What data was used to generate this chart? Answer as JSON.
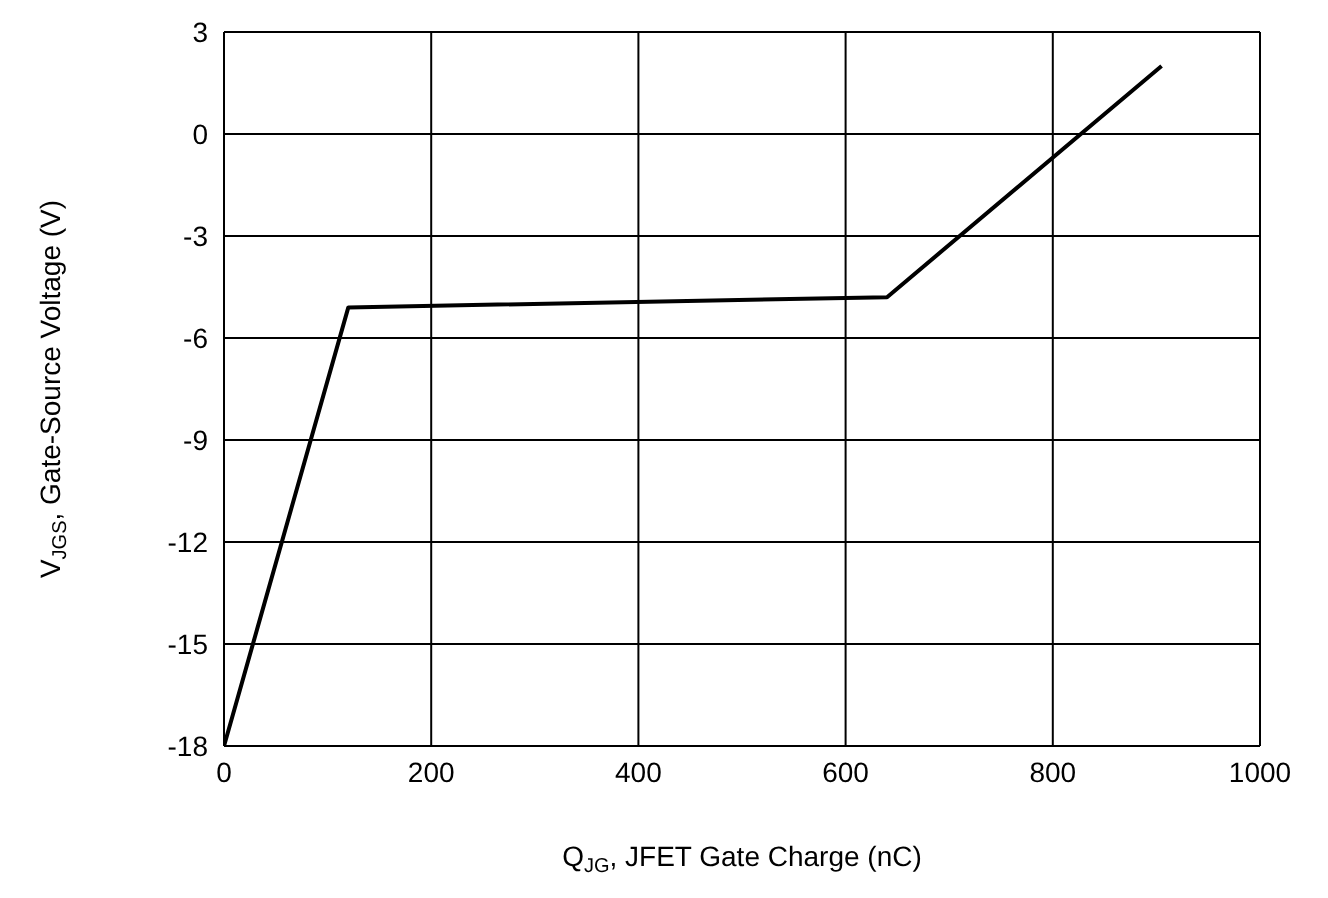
{
  "chart_data": {
    "type": "line",
    "xlabel": "Q$_{JG}$, JFET Gate Charge (nC)",
    "ylabel": "V$_{JGS}$, Gate-Source Voltage (V)",
    "x": [
      0,
      120,
      640,
      905
    ],
    "series": [
      {
        "color": "#000000",
        "values": [
          -18,
          -5.1,
          -4.8,
          2
        ]
      }
    ],
    "xlim": [
      0,
      1000
    ],
    "xticks": [
      0,
      200,
      400,
      600,
      800,
      1000
    ],
    "ylim": [
      -18,
      3
    ],
    "yticks": [
      -18,
      -15,
      -12,
      -9,
      -6,
      -3,
      0,
      3
    ],
    "grid": true,
    "marker": "none",
    "line_style": "solid",
    "legend": false
  }
}
